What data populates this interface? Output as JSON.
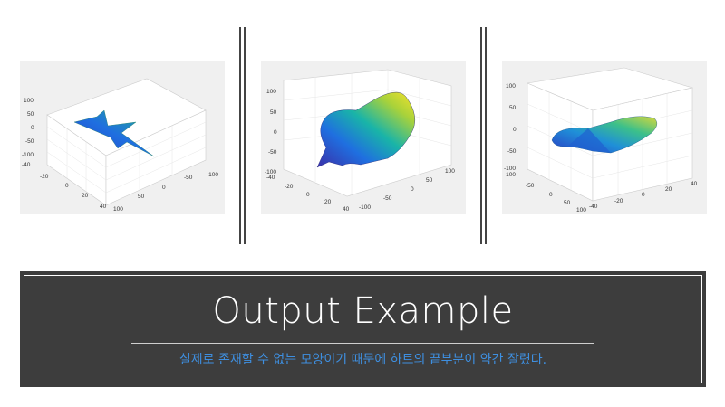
{
  "chart_data": [
    {
      "type": "surface3d",
      "view": "star-shaped flat surface",
      "z_ticks": [
        "100",
        "50",
        "0",
        "-50",
        "-100"
      ],
      "x_ticks": [
        "-40",
        "-20",
        "0",
        "20",
        "40"
      ],
      "y_ticks": [
        "100",
        "50",
        "0",
        "-50",
        "-100"
      ]
    },
    {
      "type": "surface3d",
      "view": "heart-shaped surface tilted",
      "z_ticks": [
        "100",
        "50",
        "0",
        "-50",
        "-100"
      ],
      "x_ticks": [
        "-40",
        "-20",
        "0",
        "20",
        "40"
      ],
      "y_ticks": [
        "100",
        "50",
        "0",
        "-50",
        "-100"
      ]
    },
    {
      "type": "surface3d",
      "view": "heart-shaped surface side view",
      "z_ticks": [
        "100",
        "50",
        "0",
        "-50",
        "-100"
      ],
      "x_ticks": [
        "-100",
        "-50",
        "0",
        "50",
        "100"
      ],
      "y_ticks": [
        "-40",
        "-20",
        "0",
        "20",
        "40"
      ]
    }
  ],
  "caption": {
    "title": "Output Example",
    "subtitle": "실제로 존재할 수 없는 모양이기 때문에 하트의 끝부분이 약간 잘렸다."
  },
  "colors": {
    "caption_bg": "#3d3d3d",
    "subtitle": "#3e8fe0",
    "plot_bg": "#f0f0f0"
  }
}
